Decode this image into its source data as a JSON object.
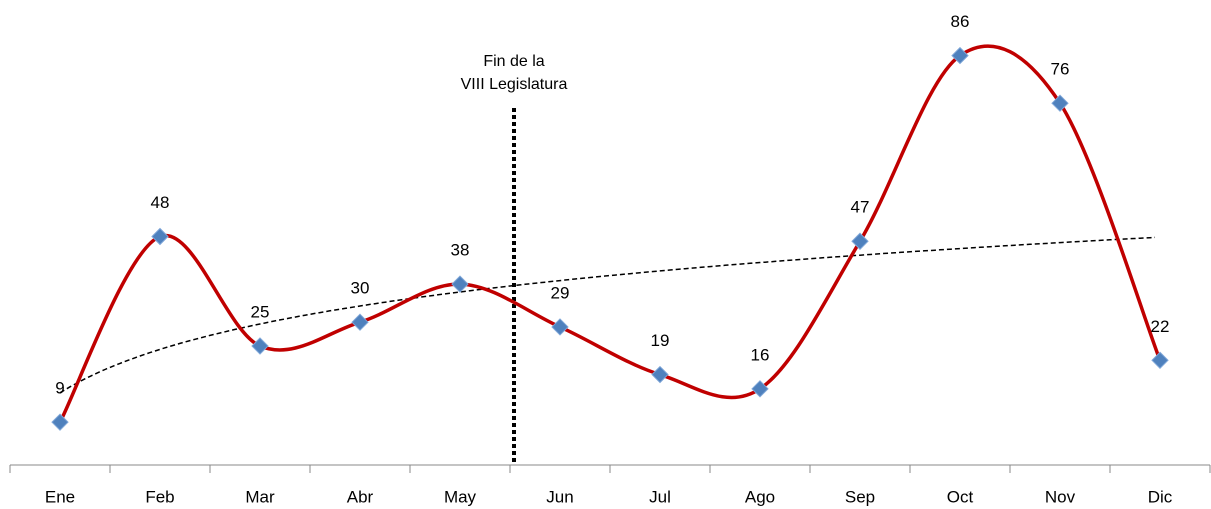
{
  "chart_data": {
    "type": "line",
    "categories": [
      "Ene",
      "Feb",
      "Mar",
      "Abr",
      "May",
      "Jun",
      "Jul",
      "Ago",
      "Sep",
      "Oct",
      "Nov",
      "Dic"
    ],
    "series": [
      {
        "color": "#c00000",
        "marker_color": "#4f81bd",
        "values": [
          9,
          48,
          25,
          30,
          38,
          29,
          19,
          16,
          47,
          86,
          76,
          22
        ]
      }
    ],
    "ylim": [
      0,
      96
    ],
    "smooth": true,
    "trendline": "logarithmic",
    "annotation": [
      "Fin de la",
      "VIII Legislatura"
    ]
  }
}
